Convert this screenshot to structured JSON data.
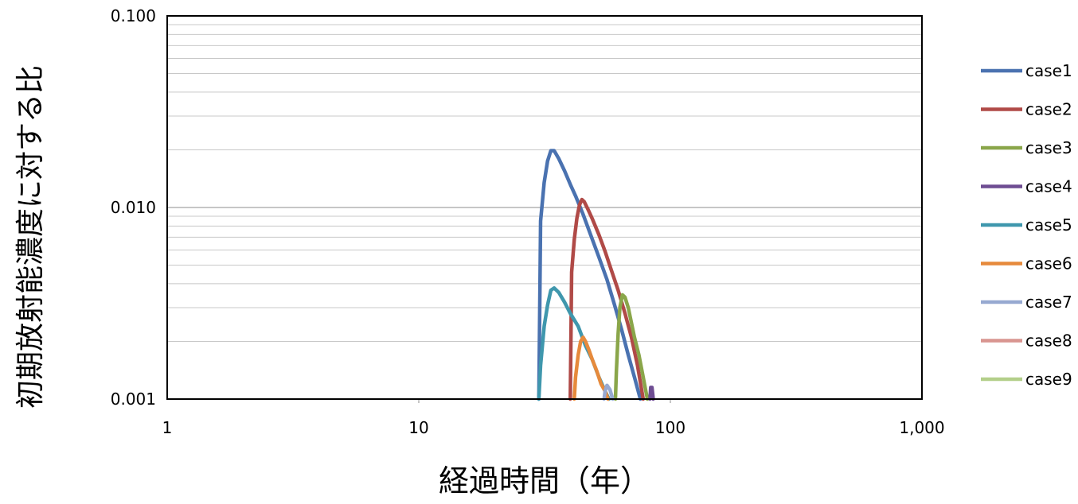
{
  "chart_data": {
    "type": "line",
    "title": "",
    "xlabel": "経過時間（年）",
    "ylabel": "初期放射能濃度に対する比",
    "x_scale": "log",
    "y_scale": "log",
    "xlim": [
      1,
      1000
    ],
    "ylim": [
      0.001,
      0.1
    ],
    "x_ticks": [
      {
        "value": 1,
        "label": "1"
      },
      {
        "value": 10,
        "label": "10"
      },
      {
        "value": 100,
        "label": "100"
      },
      {
        "value": 1000,
        "label": "1,000"
      }
    ],
    "y_ticks": [
      {
        "value": 0.1,
        "label": "0.100"
      },
      {
        "value": 0.01,
        "label": "0.010"
      },
      {
        "value": 0.001,
        "label": "0.001"
      }
    ],
    "grid": "horizontal major and minor",
    "legend_position": "right",
    "series": [
      {
        "name": "case1",
        "color": "#4a72b0",
        "x": [
          30,
          30.5,
          31.5,
          32.5,
          33.5,
          34.5,
          36,
          38,
          40,
          42,
          45,
          48,
          52,
          56,
          60,
          64,
          68,
          72,
          76
        ],
        "y": [
          0.001,
          0.0085,
          0.0135,
          0.0175,
          0.0198,
          0.0198,
          0.018,
          0.0155,
          0.0132,
          0.0115,
          0.0092,
          0.0073,
          0.0055,
          0.0042,
          0.0031,
          0.0023,
          0.0017,
          0.0013,
          0.001
        ]
      },
      {
        "name": "case2",
        "color": "#b04a47",
        "x": [
          40,
          40.5,
          41.5,
          42.5,
          43.5,
          44.5,
          45.5,
          47,
          49,
          52,
          55,
          58,
          62,
          66,
          70,
          74,
          78
        ],
        "y": [
          0.001,
          0.0046,
          0.0068,
          0.0088,
          0.0103,
          0.011,
          0.0107,
          0.0098,
          0.0087,
          0.0072,
          0.0059,
          0.0048,
          0.0037,
          0.0028,
          0.0021,
          0.0015,
          0.001
        ]
      },
      {
        "name": "case3",
        "color": "#8aa64a",
        "x": [
          60.5,
          61,
          62,
          63,
          64.5,
          66,
          68,
          70,
          72,
          75,
          78,
          81
        ],
        "y": [
          0.001,
          0.0014,
          0.0022,
          0.003,
          0.0035,
          0.0034,
          0.003,
          0.0025,
          0.0021,
          0.0017,
          0.0013,
          0.001
        ]
      },
      {
        "name": "case4",
        "color": "#6e4d92",
        "x": [
          83,
          83.5,
          84.5,
          85.5
        ],
        "y": [
          0.001,
          0.00115,
          0.00115,
          0.001
        ]
      },
      {
        "name": "case5",
        "color": "#3f97ad",
        "x": [
          30,
          30.5,
          31.5,
          32.5,
          33.5,
          34.5,
          36,
          38,
          40,
          43,
          46,
          49,
          52,
          55,
          57
        ],
        "y": [
          0.001,
          0.0015,
          0.0024,
          0.0031,
          0.0037,
          0.0038,
          0.0036,
          0.0032,
          0.0028,
          0.0024,
          0.0019,
          0.0016,
          0.0013,
          0.0011,
          0.001
        ]
      },
      {
        "name": "case6",
        "color": "#e68a3c",
        "x": [
          41.5,
          42,
          43,
          44,
          45,
          46,
          47.5,
          49,
          51,
          53,
          55,
          56.5
        ],
        "y": [
          0.001,
          0.0013,
          0.0017,
          0.002,
          0.0021,
          0.002,
          0.0018,
          0.0016,
          0.0014,
          0.0012,
          0.0011,
          0.001
        ]
      },
      {
        "name": "case7",
        "color": "#97a9d1",
        "x": [
          54.5,
          55,
          56,
          57.5,
          59
        ],
        "y": [
          0.001,
          0.0011,
          0.00118,
          0.00112,
          0.001
        ]
      },
      {
        "name": "case8",
        "color": "#d99590",
        "x": [],
        "y": []
      },
      {
        "name": "case9",
        "color": "#b3cf8a",
        "x": [],
        "y": []
      }
    ]
  }
}
